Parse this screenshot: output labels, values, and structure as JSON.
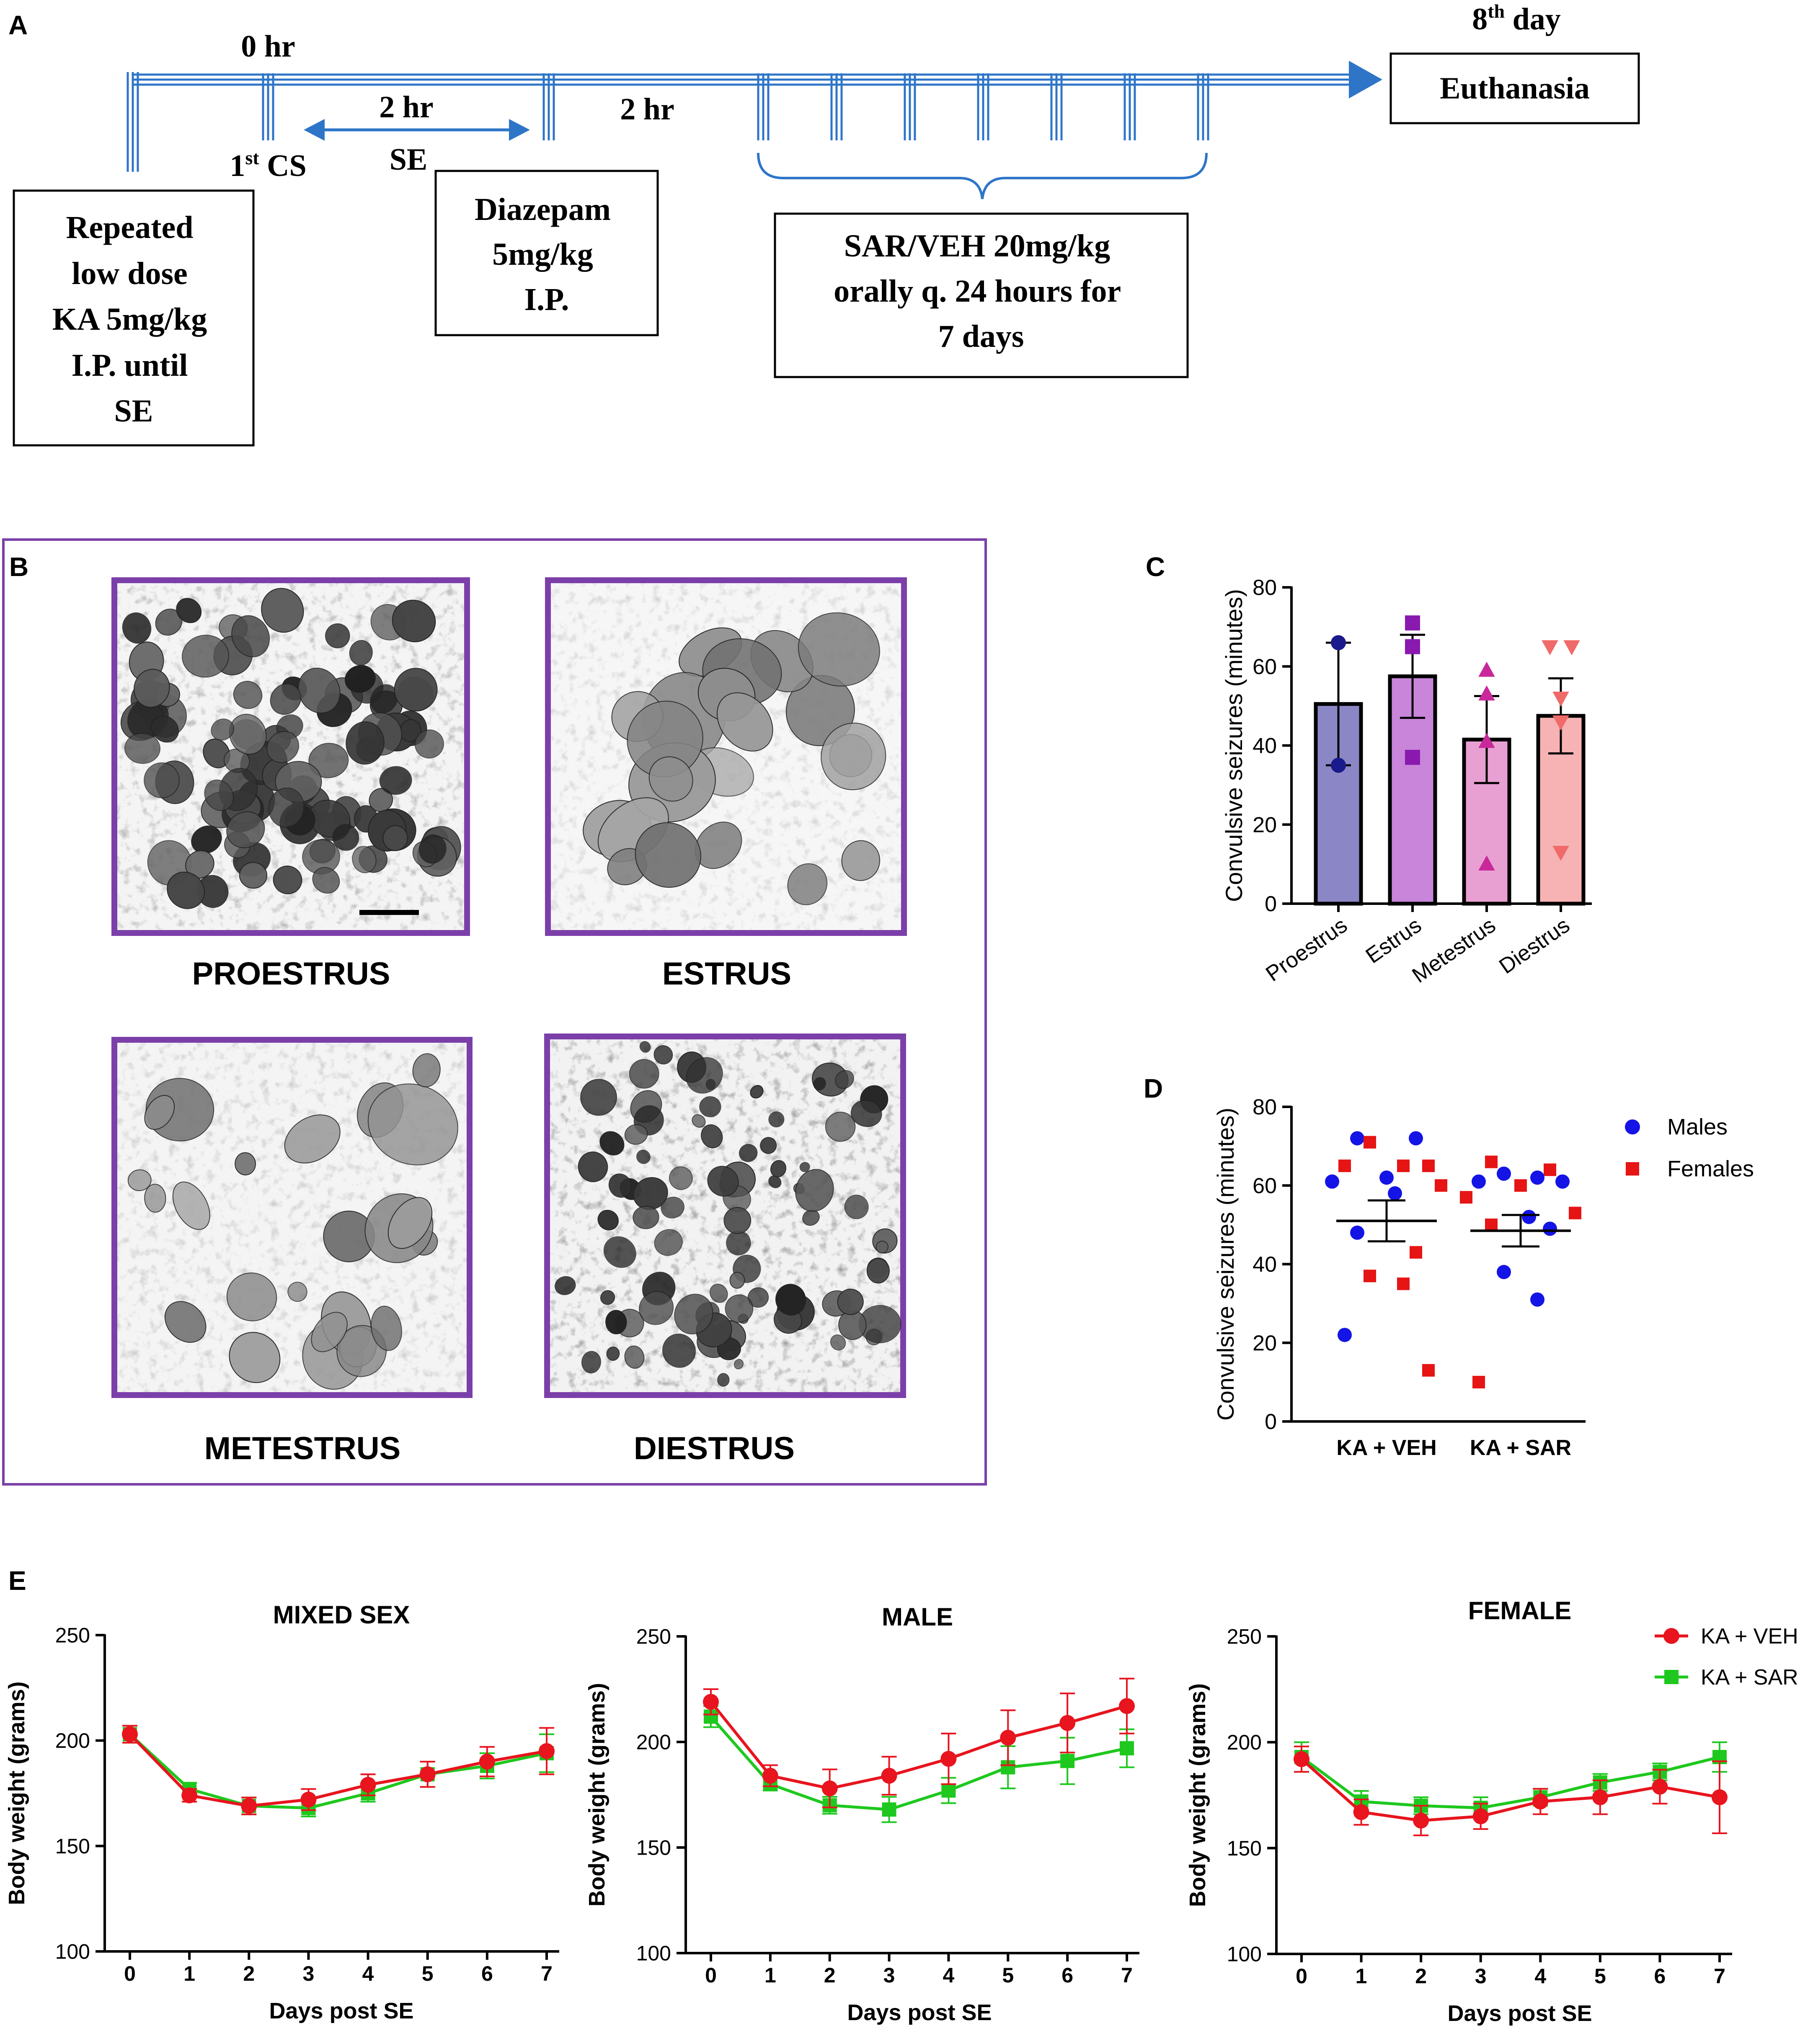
{
  "colors": {
    "timeline": "#2E75C8",
    "purple_frame": "#7B3FA9",
    "proestrus": "#8B87C6",
    "estrus": "#C885DA",
    "metestrus": "#E8A0D2",
    "diestrus": "#F7B3B3",
    "male": "#1414E6",
    "female": "#E61414",
    "veh": "#E8141E",
    "sar": "#1EC81E"
  },
  "panel_labels": {
    "a": "A",
    "b": "B",
    "c": "C",
    "d": "D",
    "e": "E"
  },
  "panel_a": {
    "hr0": "0 hr",
    "day8_main": "8",
    "day8_sup": "th",
    "day8_rest": " day",
    "cs_main": "1",
    "cs_sup": "st",
    "cs_rest": " CS",
    "two_hr_se": "2 hr",
    "se": "SE",
    "two_hr": "2 hr",
    "euthanasia": "Euthanasia",
    "box_ka": [
      "Repeated",
      "low dose",
      "KA 5mg/kg",
      "I.P. until",
      "SE"
    ],
    "box_diazepam": [
      "Diazepam",
      "5mg/kg",
      "I.P."
    ],
    "box_sar": [
      "SAR/VEH 20mg/kg",
      "orally q. 24 hours for",
      "7 days"
    ]
  },
  "panel_b": {
    "proestrus": "PROESTRUS",
    "estrus": "ESTRUS",
    "metestrus": "METESTRUS",
    "diestrus": "DIESTRUS"
  },
  "chart_data": [
    {
      "id": "C",
      "type": "bar",
      "ylabel": "Convulsive seizures (minutes)",
      "ylim": [
        0,
        80
      ],
      "yticks": [
        0,
        20,
        40,
        60,
        80
      ],
      "categories": [
        "Proestrus",
        "Estrus",
        "Metestrus",
        "Diestrus"
      ],
      "means": [
        50.5,
        57.5,
        41.5,
        47.5
      ],
      "errors": [
        15.5,
        10.5,
        11.0,
        9.5
      ],
      "points": [
        [
          66,
          35
        ],
        [
          71,
          65,
          37
        ],
        [
          59,
          53,
          41,
          10
        ],
        [
          65,
          65,
          52,
          46,
          13
        ]
      ]
    },
    {
      "id": "D",
      "type": "scatter",
      "ylabel": "Convulsive seizures (minutes)",
      "ylim": [
        0,
        80
      ],
      "yticks": [
        0,
        20,
        40,
        60,
        80
      ],
      "categories": [
        "KA + VEH",
        "KA + SAR"
      ],
      "means": [
        51,
        48.5
      ],
      "sem": [
        5.2,
        4.0
      ],
      "legend": [
        "Males",
        "Females"
      ],
      "males": [
        [
          72,
          72,
          62,
          61,
          58,
          48,
          22
        ],
        [
          63,
          62,
          61,
          61,
          52,
          49,
          38,
          31
        ]
      ],
      "females": [
        [
          71,
          65,
          65,
          65,
          60,
          43,
          37,
          35,
          13
        ],
        [
          66,
          64,
          60,
          57,
          53,
          50,
          10
        ]
      ]
    },
    {
      "id": "E-mixed",
      "type": "line",
      "title": "MIXED SEX",
      "xlabel": "Days post SE",
      "ylabel": "Body weight (grams)",
      "x": [
        0,
        1,
        2,
        3,
        4,
        5,
        6,
        7
      ],
      "ylim": [
        100,
        250
      ],
      "yticks": [
        100,
        150,
        200,
        250
      ],
      "series": [
        {
          "name": "KA + VEH",
          "values": [
            203,
            174,
            169,
            172,
            179,
            184,
            190,
            195
          ],
          "errors": [
            4,
            3,
            4,
            5,
            5,
            6,
            7,
            11
          ]
        },
        {
          "name": "KA + SAR",
          "values": [
            203,
            177,
            169,
            168,
            175,
            184,
            188,
            194
          ],
          "errors": [
            4,
            3,
            4,
            4,
            4,
            6,
            6,
            9
          ]
        }
      ]
    },
    {
      "id": "E-male",
      "type": "line",
      "title": "MALE",
      "xlabel": "Days post SE",
      "ylabel": "Body weight (grams)",
      "x": [
        0,
        1,
        2,
        3,
        4,
        5,
        6,
        7
      ],
      "ylim": [
        100,
        250
      ],
      "yticks": [
        100,
        150,
        200,
        250
      ],
      "series": [
        {
          "name": "KA + VEH",
          "values": [
            219,
            184,
            178,
            184,
            192,
            202,
            209,
            217
          ],
          "errors": [
            6,
            5,
            9,
            9,
            12,
            13,
            14,
            13
          ]
        },
        {
          "name": "KA + SAR",
          "values": [
            212,
            180,
            170,
            168,
            177,
            188,
            191,
            197
          ],
          "errors": [
            5,
            3,
            4,
            6,
            6,
            10,
            11,
            9
          ]
        }
      ]
    },
    {
      "id": "E-female",
      "type": "line",
      "title": "FEMALE",
      "xlabel": "Days post SE",
      "ylabel": "Body weight (grams)",
      "x": [
        0,
        1,
        2,
        3,
        4,
        5,
        6,
        7
      ],
      "ylim": [
        100,
        250
      ],
      "yticks": [
        100,
        150,
        200,
        250
      ],
      "legend": [
        "KA + VEH",
        "KA + SAR"
      ],
      "series": [
        {
          "name": "KA + VEH",
          "values": [
            192,
            167,
            163,
            165,
            172,
            174,
            179,
            174
          ],
          "errors": [
            6,
            6,
            7,
            6,
            6,
            8,
            8,
            17
          ]
        },
        {
          "name": "KA + SAR",
          "values": [
            193,
            172,
            170,
            169,
            174,
            181,
            186,
            193
          ],
          "errors": [
            7,
            5,
            4,
            5,
            4,
            4,
            4,
            7
          ]
        }
      ]
    }
  ]
}
